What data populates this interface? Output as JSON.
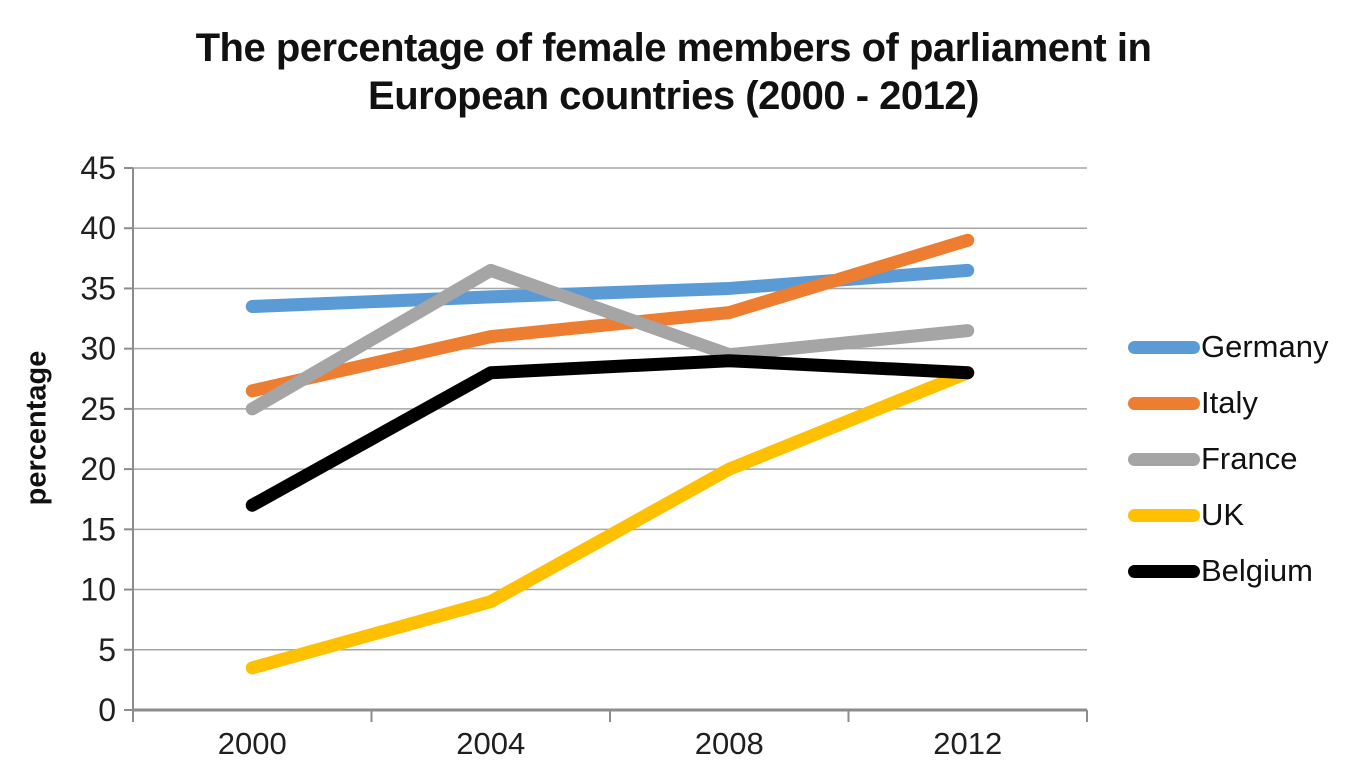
{
  "page": {
    "background_color": "#ffffff"
  },
  "chart_data": {
    "type": "line",
    "title": "The percentage of female members of parliament in European countries (2000 - 2012)",
    "title_lines": [
      "The percentage of female members of parliament in",
      "European countries (2000 - 2012)"
    ],
    "xlabel": "",
    "ylabel": "percentage",
    "categories": [
      "2000",
      "2004",
      "2008",
      "2012"
    ],
    "series": [
      {
        "name": "Germany",
        "color": "#5B9BD5",
        "values": [
          33.5,
          34.3,
          35,
          36.5
        ]
      },
      {
        "name": "Italy",
        "color": "#ED7D31",
        "values": [
          26.5,
          31,
          33,
          39
        ]
      },
      {
        "name": "France",
        "color": "#A5A5A5",
        "values": [
          25,
          36.5,
          29.5,
          31.5
        ]
      },
      {
        "name": "UK",
        "color": "#FFC000",
        "values": [
          3.5,
          9,
          20,
          28
        ]
      },
      {
        "name": "Belgium",
        "color": "#000000",
        "values": [
          17,
          28,
          29,
          28
        ]
      }
    ],
    "ylim": [
      0,
      45
    ],
    "y_ticks": [
      0,
      5,
      10,
      15,
      20,
      25,
      30,
      35,
      40,
      45
    ],
    "grid": true,
    "legend_position": "right",
    "style": {
      "gridline_color": "#A6A6A6",
      "axis_color": "#8C8C8C",
      "tick_label_color": "#1f1f1f",
      "line_width": 13,
      "tick_font_size": 32,
      "x_tick_font_size": 31
    }
  }
}
